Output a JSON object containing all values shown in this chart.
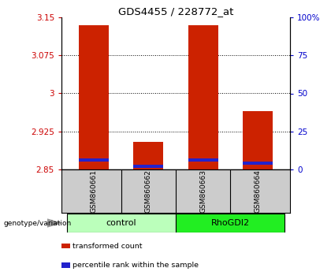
{
  "title": "GDS4455 / 228772_at",
  "samples": [
    "GSM860661",
    "GSM860662",
    "GSM860663",
    "GSM860664"
  ],
  "groups": [
    "control",
    "control",
    "RhoGDI2",
    "RhoGDI2"
  ],
  "group_labels": [
    "control",
    "RhoGDI2"
  ],
  "group_colors": [
    "#bbffbb",
    "#22ee22"
  ],
  "bar_bottom": 2.85,
  "red_values": [
    3.135,
    2.905,
    3.135,
    2.965
  ],
  "blue_values": [
    2.868,
    2.856,
    2.868,
    2.862
  ],
  "ylim_left": [
    2.85,
    3.15
  ],
  "yticks_left": [
    2.85,
    2.925,
    3.0,
    3.075,
    3.15
  ],
  "ytick_labels_left": [
    "2.85",
    "2.925",
    "3",
    "3.075",
    "3.15"
  ],
  "yticks_right": [
    0,
    25,
    50,
    75,
    100
  ],
  "ytick_labels_right": [
    "0",
    "25",
    "50",
    "75",
    "100%"
  ],
  "left_color": "#cc0000",
  "right_color": "#0000cc",
  "red_bar_color": "#cc2200",
  "blue_bar_color": "#2222cc",
  "bg_color": "#ffffff",
  "plot_bg": "#ffffff",
  "legend_items": [
    "transformed count",
    "percentile rank within the sample"
  ],
  "legend_colors": [
    "#cc2200",
    "#2222cc"
  ],
  "genotype_label": "genotype/variation",
  "sample_bg": "#cccccc",
  "bar_width": 0.55
}
